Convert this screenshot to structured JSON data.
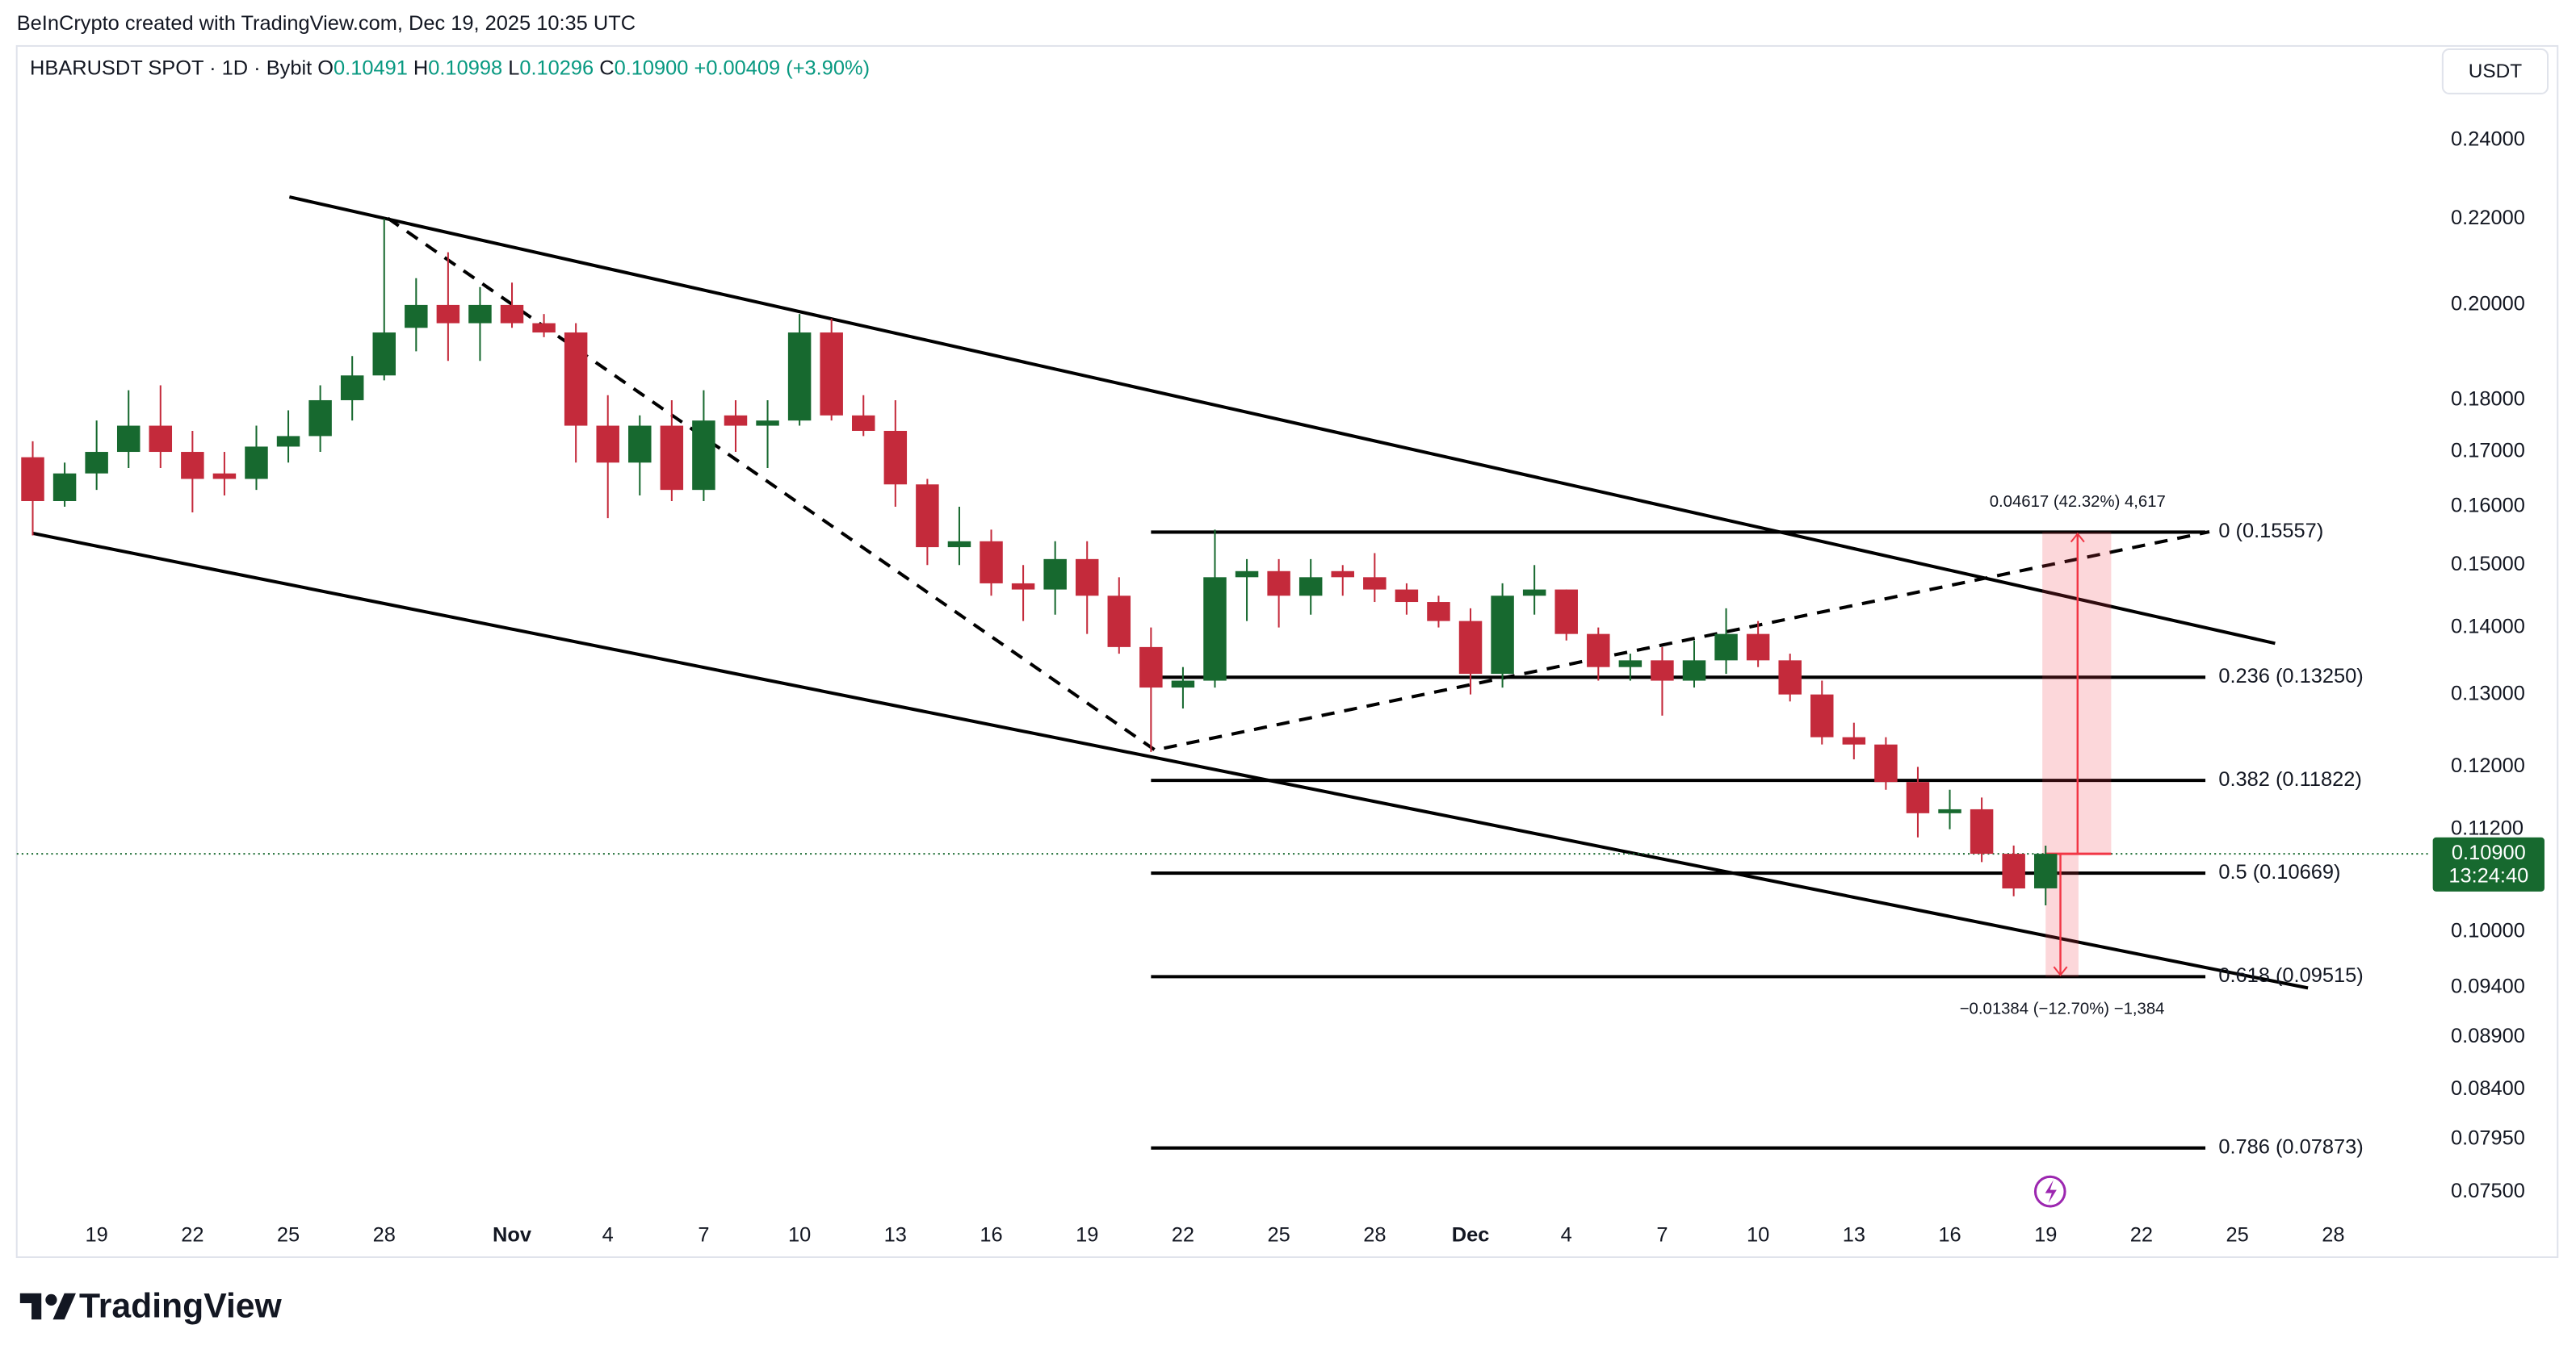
{
  "header": {
    "credit": "BeInCrypto created with TradingView.com, Dec 19, 2025 10:35 UTC",
    "symbol": "HBARUSDT SPOT · 1D · Bybit",
    "ohlc": [
      {
        "key": "O",
        "value": "0.10491"
      },
      {
        "key": "H",
        "value": "0.10998"
      },
      {
        "key": "L",
        "value": "0.10296"
      },
      {
        "key": "C",
        "value": "0.10900"
      }
    ],
    "change": "+0.00409 (+3.90%)",
    "currency": "USDT",
    "logo": "TradingView"
  },
  "chart_data": {
    "type": "candlestick",
    "log_scale": true,
    "up_color": "#17692f",
    "down_color": "#c42a3b",
    "categories": [
      null,
      null,
      "19",
      null,
      null,
      "22",
      null,
      null,
      "25",
      null,
      null,
      "28",
      null,
      null,
      null,
      "Nov",
      null,
      null,
      "4",
      null,
      null,
      "7",
      null,
      null,
      "10",
      null,
      null,
      "13",
      null,
      null,
      "16",
      null,
      null,
      "19",
      null,
      null,
      "22",
      null,
      null,
      "25",
      null,
      null,
      "28",
      null,
      null,
      "Dec",
      null,
      null,
      "4",
      null,
      null,
      "7",
      null,
      null,
      "10",
      null,
      null,
      "13",
      null,
      null,
      "16",
      null,
      null,
      "19",
      null,
      null,
      "22",
      null,
      null,
      "25",
      null,
      null,
      "28",
      null,
      null
    ],
    "open": [
      0.169,
      0.161,
      0.166,
      0.17,
      0.175,
      0.17,
      0.166,
      0.165,
      0.171,
      0.173,
      0.18,
      0.185,
      0.195,
      0.2,
      0.196,
      0.2,
      0.196,
      0.194,
      0.175,
      0.168,
      0.175,
      0.163,
      0.177,
      0.175,
      0.176,
      0.194,
      0.177,
      0.174,
      0.164,
      0.153,
      0.154,
      0.147,
      0.146,
      0.151,
      0.145,
      0.137,
      0.131,
      0.132,
      0.148,
      0.149,
      0.145,
      0.149,
      0.148,
      0.146,
      0.144,
      0.141,
      0.133,
      0.145,
      0.146,
      0.139,
      0.134,
      0.135,
      0.132,
      0.135,
      0.139,
      0.135,
      0.13,
      0.124,
      0.123,
      0.118,
      0.114,
      0.1145,
      0.109,
      0.10491,
      null,
      null,
      null,
      null,
      null,
      null,
      null,
      null,
      null,
      null,
      null
    ],
    "high": [
      0.172,
      0.168,
      0.176,
      0.182,
      0.183,
      0.174,
      0.17,
      0.175,
      0.178,
      0.183,
      0.189,
      0.22,
      0.206,
      0.212,
      0.204,
      0.205,
      0.198,
      0.196,
      0.181,
      0.177,
      0.18,
      0.182,
      0.18,
      0.18,
      0.198,
      0.197,
      0.181,
      0.18,
      0.165,
      0.16,
      0.156,
      0.15,
      0.154,
      0.154,
      0.148,
      0.14,
      0.134,
      0.156,
      0.151,
      0.151,
      0.151,
      0.15,
      0.152,
      0.147,
      0.145,
      0.143,
      0.147,
      0.15,
      0.146,
      0.14,
      0.136,
      0.137,
      0.138,
      0.143,
      0.141,
      0.136,
      0.132,
      0.126,
      0.124,
      0.12,
      0.117,
      0.116,
      0.11,
      0.10998,
      null,
      null,
      null,
      null,
      null,
      null,
      null,
      null,
      null,
      null,
      null
    ],
    "low": [
      0.155,
      0.16,
      0.163,
      0.167,
      0.167,
      0.159,
      0.162,
      0.163,
      0.168,
      0.17,
      0.176,
      0.184,
      0.19,
      0.188,
      0.188,
      0.195,
      0.193,
      0.168,
      0.158,
      0.162,
      0.161,
      0.161,
      0.17,
      0.167,
      0.175,
      0.176,
      0.173,
      0.16,
      0.15,
      0.15,
      0.145,
      0.141,
      0.142,
      0.139,
      0.136,
      0.122,
      0.128,
      0.131,
      0.141,
      0.14,
      0.142,
      0.145,
      0.144,
      0.142,
      0.14,
      0.13,
      0.131,
      0.142,
      0.138,
      0.132,
      0.132,
      0.127,
      0.131,
      0.133,
      0.134,
      0.129,
      0.123,
      0.121,
      0.117,
      0.111,
      0.112,
      0.108,
      0.104,
      0.10296,
      null,
      null,
      null,
      null,
      null,
      null,
      null,
      null,
      null,
      null,
      null
    ],
    "close": [
      0.161,
      0.166,
      0.17,
      0.175,
      0.17,
      0.165,
      0.165,
      0.171,
      0.173,
      0.18,
      0.185,
      0.194,
      0.2,
      0.196,
      0.2,
      0.196,
      0.194,
      0.175,
      0.168,
      0.175,
      0.163,
      0.176,
      0.175,
      0.176,
      0.194,
      0.177,
      0.174,
      0.164,
      0.153,
      0.154,
      0.147,
      0.146,
      0.151,
      0.145,
      0.137,
      0.131,
      0.132,
      0.148,
      0.149,
      0.145,
      0.148,
      0.148,
      0.146,
      0.144,
      0.141,
      0.133,
      0.145,
      0.146,
      0.139,
      0.134,
      0.135,
      0.132,
      0.135,
      0.139,
      0.135,
      0.13,
      0.124,
      0.123,
      0.118,
      0.114,
      0.1145,
      0.109,
      0.1049,
      0.109,
      null,
      null,
      null,
      null,
      null,
      null,
      null,
      null,
      null,
      null,
      null
    ],
    "ylim": [
      0.0699,
      0.2513
    ],
    "yticks": [
      {
        "value": 0.24,
        "label": "0.24000"
      },
      {
        "value": 0.22,
        "label": "0.22000"
      },
      {
        "value": 0.2,
        "label": "0.20000"
      },
      {
        "value": 0.18,
        "label": "0.18000"
      },
      {
        "value": 0.17,
        "label": "0.17000"
      },
      {
        "value": 0.16,
        "label": "0.16000"
      },
      {
        "value": 0.15,
        "label": "0.15000"
      },
      {
        "value": 0.14,
        "label": "0.14000"
      },
      {
        "value": 0.13,
        "label": "0.13000"
      },
      {
        "value": 0.12,
        "label": "0.12000"
      },
      {
        "value": 0.112,
        "label": "0.11200"
      },
      {
        "value": 0.1,
        "label": "0.10000"
      },
      {
        "value": 0.094,
        "label": "0.09400"
      },
      {
        "value": 0.089,
        "label": "0.08900"
      },
      {
        "value": 0.084,
        "label": "0.08400"
      },
      {
        "value": 0.0795,
        "label": "0.07950"
      },
      {
        "value": 0.075,
        "label": "0.07500"
      }
    ],
    "last_price": {
      "value": 0.109,
      "label": "0.10900",
      "countdown": "13:24:40",
      "color": "#17692f"
    },
    "fib": [
      {
        "value": 0.15557,
        "label": "0 (0.15557)"
      },
      {
        "value": 0.1325,
        "label": "0.236 (0.13250)"
      },
      {
        "value": 0.11822,
        "label": "0.382 (0.11822)"
      },
      {
        "value": 0.10669,
        "label": "0.5 (0.10669)"
      },
      {
        "value": 0.09515,
        "label": "0.618 (0.09515)"
      },
      {
        "value": 0.07873,
        "label": "0.786 (0.07873)"
      }
    ],
    "measure": {
      "up": "0.04617 (42.32%) 4,617",
      "down": "−0.01384 (−12.70%) −1,384"
    }
  }
}
